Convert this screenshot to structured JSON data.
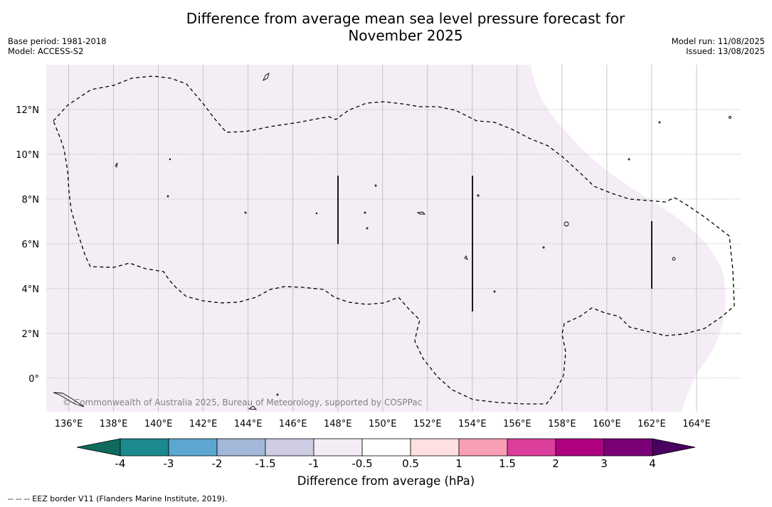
{
  "title_line1": "Difference from average mean sea level pressure forecast for",
  "title_line2": "November 2025",
  "meta_left": {
    "base_period": "Base period: 1981-2018",
    "model": "Model: ACCESS-S2"
  },
  "meta_right": {
    "model_run": "Model run: 11/08/2025",
    "issued": "Issued: 13/08/2025"
  },
  "map": {
    "lon_range": [
      135.0,
      166.0
    ],
    "lat_range": [
      -1.5,
      14.0
    ],
    "lon_ticks": [
      "136°E",
      "138°E",
      "140°E",
      "142°E",
      "144°E",
      "146°E",
      "148°E",
      "150°E",
      "152°E",
      "154°E",
      "156°E",
      "158°E",
      "160°E",
      "162°E",
      "164°E"
    ],
    "lat_ticks": [
      "12°N",
      "10°N",
      "8°N",
      "6°N",
      "4°N",
      "2°N",
      "0°"
    ],
    "copyright": "© Commonwealth of Australia 2025, Bureau of Meteorology, supported by COSPPac",
    "shading_color": "#f5edf6"
  },
  "colorbar": {
    "label": "Difference from average (hPa)",
    "ticks": [
      "-4",
      "-3",
      "-2",
      "-1.5",
      "-1",
      "-0.5",
      "0.5",
      "1",
      "1.5",
      "2",
      "3",
      "4"
    ],
    "colors": [
      "#1a8a8f",
      "#5ca7d0",
      "#a3b7d9",
      "#cfcde3",
      "#f5edf6",
      "#ffffff",
      "#fde0df",
      "#f99fb5",
      "#dc3e9c",
      "#ae027e",
      "#7a0177"
    ],
    "under_color": "#0e6b5e",
    "over_color": "#4a0060"
  },
  "footnote": "--  --  -- EEZ border V11 (Flanders Marine Institute, 2019)."
}
